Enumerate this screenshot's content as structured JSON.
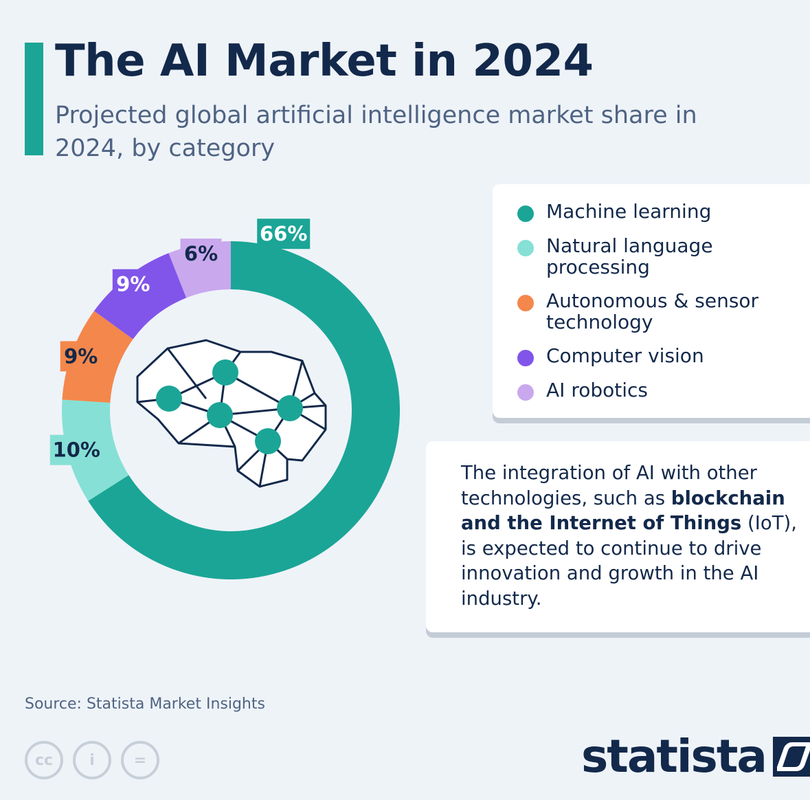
{
  "header": {
    "title": "The AI Market in 2024",
    "subtitle": "Projected global artificial intelligence market share in 2024, by category"
  },
  "chart_data": {
    "type": "pie",
    "donut": true,
    "categories": [
      "Machine learning",
      "Natural language processing",
      "Autonomous & sensor technology",
      "Computer vision",
      "AI robotics"
    ],
    "values": [
      66,
      10,
      9,
      9,
      6
    ],
    "value_labels": [
      "66%",
      "10%",
      "9%",
      "9%",
      "6%"
    ],
    "colors": [
      "#1ba596",
      "#86e0d5",
      "#f4874b",
      "#8155ea",
      "#c9a8ee"
    ],
    "label_text_colors": [
      "#ffffff",
      "#13294b",
      "#13294b",
      "#ffffff",
      "#13294b"
    ],
    "legend_position": "right"
  },
  "legend": {
    "items": [
      {
        "label": "Machine learning",
        "color": "#1ba596"
      },
      {
        "label": "Natural language processing",
        "color": "#86e0d5"
      },
      {
        "label": "Autonomous & sensor technology",
        "color": "#f4874b"
      },
      {
        "label": "Computer vision",
        "color": "#8155ea"
      },
      {
        "label": "AI robotics",
        "color": "#c9a8ee"
      }
    ]
  },
  "note": {
    "part1": "The integration of AI with other technologies, such as ",
    "bold": "blockchain and the Internet of Things",
    "part2": " (IoT), is expected to continue to drive innovation and growth in the AI industry."
  },
  "source": "Source: Statista Market Insights",
  "license_icons": [
    {
      "name": "cc-icon",
      "glyph": "cc"
    },
    {
      "name": "attribution-icon",
      "glyph": "i"
    },
    {
      "name": "no-derivatives-icon",
      "glyph": "="
    }
  ],
  "brand": {
    "name": "statista"
  },
  "center_icon": "brain-network-icon"
}
